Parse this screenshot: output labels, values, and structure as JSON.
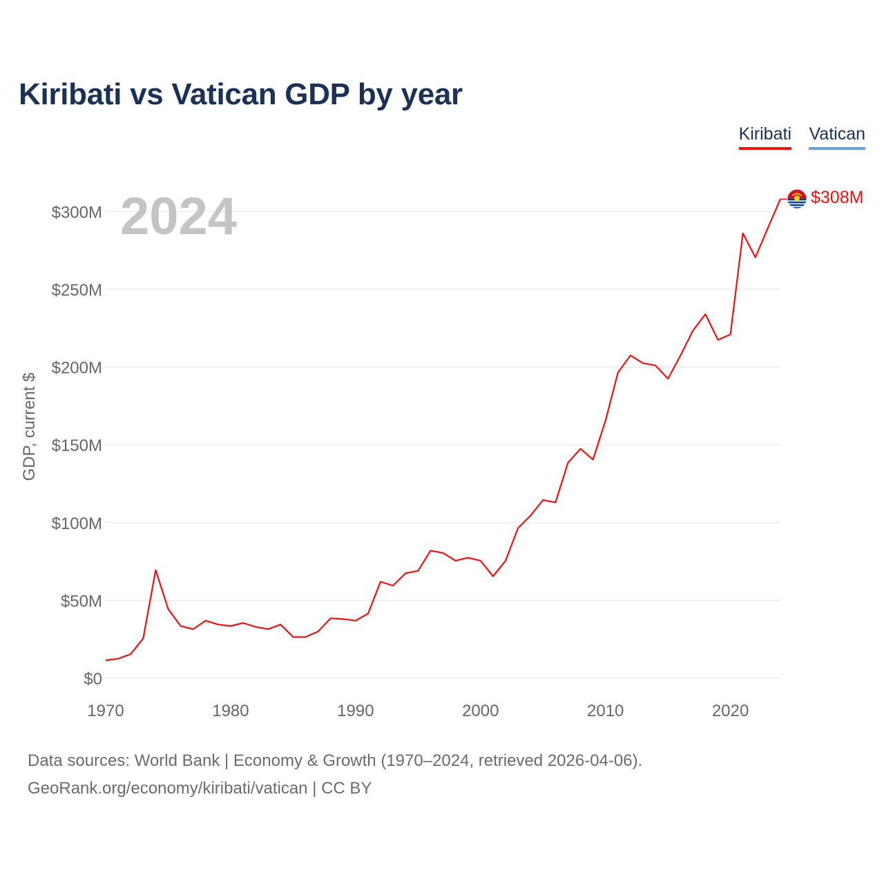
{
  "title": "Kiribati vs Vatican GDP by year",
  "legend": [
    {
      "name": "Kiribati",
      "color": "#ee1111"
    },
    {
      "name": "Vatican",
      "color": "#6a9fe0"
    }
  ],
  "footer": {
    "line1": "Data sources: World Bank | Economy & Growth (1970–2024, retrieved 2026-04-06).",
    "line2": "GeoRank.org/economy/kiribati/vatican | CC BY"
  },
  "chart_data": {
    "type": "line",
    "title": "Kiribati vs Vatican GDP by year",
    "xlabel": "",
    "ylabel": "GDP, current $",
    "xlim": [
      1970,
      2024
    ],
    "ylim": [
      0,
      320
    ],
    "y_units": "M",
    "year_label": "2024",
    "x_ticks": [
      1970,
      1980,
      1990,
      2000,
      2010,
      2020
    ],
    "y_ticks": [
      0,
      50,
      100,
      150,
      200,
      250,
      300
    ],
    "y_tick_labels": [
      "$0",
      "$50M",
      "$100M",
      "$150M",
      "$200M",
      "$250M",
      "$300M"
    ],
    "end_label": "$308M",
    "series": [
      {
        "name": "Kiribati",
        "color": "#ee1111",
        "x": [
          1970,
          1971,
          1972,
          1973,
          1974,
          1975,
          1976,
          1977,
          1978,
          1979,
          1980,
          1981,
          1982,
          1983,
          1984,
          1985,
          1986,
          1987,
          1988,
          1989,
          1990,
          1991,
          1992,
          1993,
          1994,
          1995,
          1996,
          1997,
          1998,
          1999,
          2000,
          2001,
          2002,
          2003,
          2004,
          2005,
          2006,
          2007,
          2008,
          2009,
          2010,
          2011,
          2012,
          2013,
          2014,
          2015,
          2016,
          2017,
          2018,
          2019,
          2020,
          2021,
          2022,
          2023,
          2024
        ],
        "values": [
          11.5,
          12.5,
          15.5,
          25.5,
          69.5,
          44.5,
          33.5,
          31.5,
          37,
          34.5,
          33.5,
          35.5,
          33,
          31.5,
          34.5,
          26.5,
          26.5,
          30,
          38.5,
          38,
          37,
          41.5,
          62,
          59.5,
          67.5,
          69,
          82,
          80.5,
          75.5,
          77.5,
          75.5,
          65.5,
          75.5,
          96.5,
          104.5,
          114.5,
          113,
          138.5,
          147.5,
          140.5,
          165.5,
          196.5,
          207.5,
          202.5,
          201,
          192.5,
          207.5,
          223.5,
          234,
          217.5,
          221,
          286,
          270.5,
          289.5,
          308
        ]
      },
      {
        "name": "Vatican",
        "color": "#6a9fe0",
        "x": [],
        "values": []
      }
    ]
  }
}
